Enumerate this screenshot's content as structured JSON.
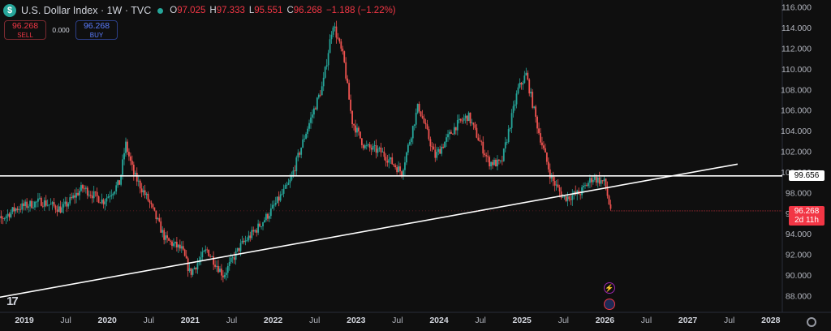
{
  "header": {
    "symbol_glyph": "$",
    "title": "U.S. Dollar Index · 1W · TVC",
    "ohlc": [
      {
        "k": "O",
        "v": "97.025"
      },
      {
        "k": "H",
        "v": "97.333"
      },
      {
        "k": "L",
        "v": "95.551"
      },
      {
        "k": "C",
        "v": "96.268"
      },
      {
        "k": "",
        "v": "−1.188 (−1.22%)"
      }
    ]
  },
  "trade": {
    "sell_price": "96.268",
    "sell_label": "SELL",
    "spread": "0.000",
    "buy_price": "96.268",
    "buy_label": "BUY"
  },
  "tags": {
    "line_price": "99.656",
    "last_price": "96.268",
    "countdown": "2d 11h"
  },
  "events": {
    "event1": "⚡",
    "event2": "🇺🇸"
  },
  "watermark": "17",
  "colors": {
    "up": "#26a69a",
    "down": "#ef5350",
    "line": "#ffffff",
    "background": "#0f0f0f"
  },
  "chart_data": {
    "type": "candlestick",
    "interval": "1W",
    "ylim": [
      88,
      116
    ],
    "y_ticks": [
      "116.000",
      "114.000",
      "112.000",
      "110.000",
      "108.000",
      "106.000",
      "104.000",
      "102.000",
      "100.000",
      "98.000",
      "96.000",
      "94.000",
      "92.000",
      "90.000",
      "88.000"
    ],
    "x_ticks": [
      "2019",
      "Jul",
      "2020",
      "Jul",
      "2021",
      "Jul",
      "2022",
      "Jul",
      "2023",
      "Jul",
      "2024",
      "Jul",
      "2025",
      "Jul",
      "2026",
      "Jul",
      "2027",
      "Jul",
      "2028"
    ],
    "x_range": [
      2019,
      2028
    ],
    "close_path": [
      [
        2018.55,
        94.5
      ],
      [
        2018.9,
        96.5
      ],
      [
        2019.2,
        97.2
      ],
      [
        2019.45,
        96.4
      ],
      [
        2019.7,
        98.5
      ],
      [
        2019.95,
        97.2
      ],
      [
        2020.15,
        99.0
      ],
      [
        2020.22,
        102.8
      ],
      [
        2020.32,
        99.8
      ],
      [
        2020.5,
        97.2
      ],
      [
        2020.7,
        93.5
      ],
      [
        2020.9,
        92.5
      ],
      [
        2021.0,
        90.2
      ],
      [
        2021.2,
        92.5
      ],
      [
        2021.4,
        90.0
      ],
      [
        2021.6,
        92.8
      ],
      [
        2021.8,
        94.5
      ],
      [
        2021.95,
        96.0
      ],
      [
        2022.2,
        99.0
      ],
      [
        2022.4,
        104.0
      ],
      [
        2022.6,
        108.5
      ],
      [
        2022.72,
        114.5
      ],
      [
        2022.85,
        111.0
      ],
      [
        2022.95,
        105.0
      ],
      [
        2023.1,
        102.5
      ],
      [
        2023.3,
        102.0
      ],
      [
        2023.55,
        100.0
      ],
      [
        2023.75,
        106.5
      ],
      [
        2023.95,
        101.5
      ],
      [
        2024.2,
        104.5
      ],
      [
        2024.35,
        105.5
      ],
      [
        2024.6,
        101.0
      ],
      [
        2024.75,
        100.8
      ],
      [
        2024.95,
        108.0
      ],
      [
        2025.05,
        109.5
      ],
      [
        2025.2,
        104.0
      ],
      [
        2025.35,
        99.5
      ],
      [
        2025.5,
        97.5
      ],
      [
        2025.7,
        98.0
      ],
      [
        2025.85,
        99.5
      ],
      [
        2026.0,
        99.0
      ],
      [
        2026.05,
        97.0
      ],
      [
        2026.08,
        96.268
      ]
    ],
    "horizontal_line": 99.656,
    "trendline": [
      [
        2018.5,
        87.6
      ],
      [
        2027.6,
        100.8
      ]
    ],
    "last_price": 96.268
  }
}
